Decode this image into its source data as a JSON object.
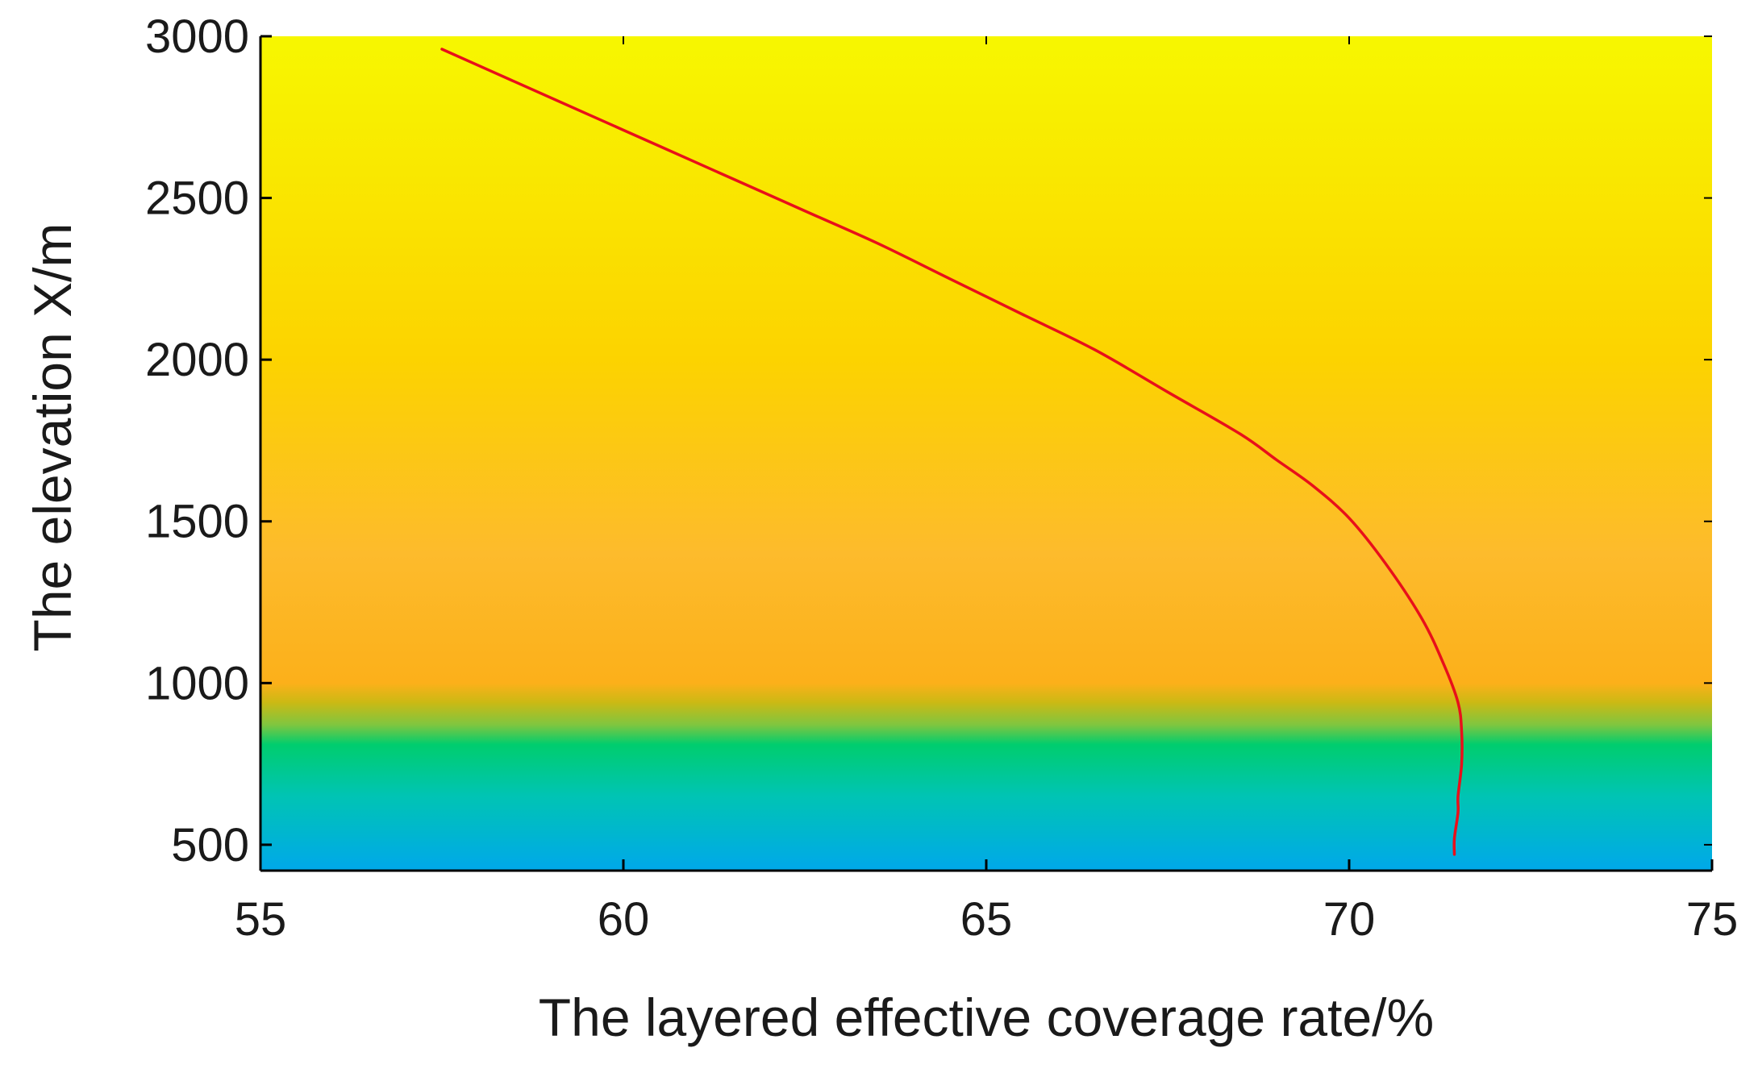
{
  "chart_data": {
    "type": "line",
    "title": "",
    "xlabel": "The layered effective coverage rate/%",
    "ylabel": "The elevation X/m",
    "xlim": [
      55,
      75
    ],
    "ylim": [
      420,
      3000
    ],
    "x_ticks": [
      55,
      60,
      65,
      70,
      75
    ],
    "y_ticks": [
      500,
      1000,
      1500,
      2000,
      2500,
      3000
    ],
    "x_tick_labels": [
      "55",
      "60",
      "65",
      "70",
      "75"
    ],
    "y_tick_labels": [
      "500",
      "1000",
      "1500",
      "2000",
      "2500",
      "3000"
    ],
    "grid": false,
    "legend": "none",
    "line_color": "#e8101a",
    "background_gradient": [
      {
        "elevation": 3000,
        "color": "#f7f700"
      },
      {
        "elevation": 2000,
        "color": "#fcd300"
      },
      {
        "elevation": 1400,
        "color": "#fdbb2c"
      },
      {
        "elevation": 1000,
        "color": "#fcb01a"
      },
      {
        "elevation": 940,
        "color": "#cbb914"
      },
      {
        "elevation": 870,
        "color": "#7ec640"
      },
      {
        "elevation": 810,
        "color": "#00cd6e"
      },
      {
        "elevation": 650,
        "color": "#00c4b4"
      },
      {
        "elevation": 420,
        "color": "#00a8ea"
      }
    ],
    "series": [
      {
        "x": [
          57.5,
          58.5,
          59.5,
          60.5,
          61.5,
          62.5,
          63.5,
          64.5,
          65.5,
          66.5,
          67.5,
          68.5,
          69.0,
          69.5,
          70.0,
          70.5,
          71.0,
          71.3,
          71.5,
          71.55,
          71.55,
          71.5,
          71.5,
          71.45,
          71.45
        ],
        "y": [
          2960,
          2860,
          2760,
          2660,
          2560,
          2460,
          2360,
          2250,
          2140,
          2030,
          1900,
          1770,
          1690,
          1610,
          1510,
          1370,
          1200,
          1060,
          940,
          850,
          750,
          650,
          600,
          520,
          470
        ]
      }
    ]
  }
}
